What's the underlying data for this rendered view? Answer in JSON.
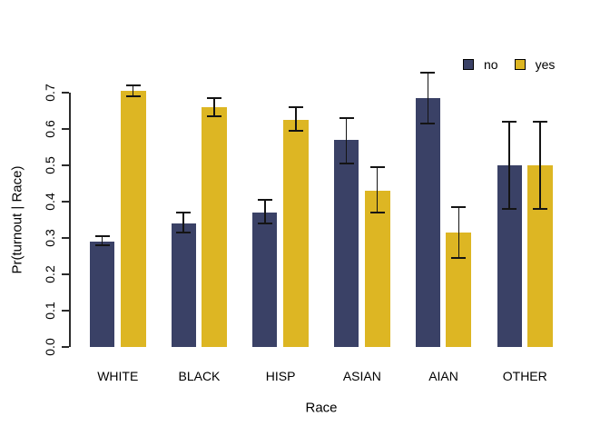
{
  "chart_data": {
    "type": "bar",
    "title": "",
    "xlabel": "Race",
    "ylabel": "Pr(turnout | Race)",
    "categories": [
      "WHITE",
      "BLACK",
      "HISP",
      "ASIAN",
      "AIAN",
      "OTHER"
    ],
    "series": [
      {
        "name": "no",
        "color": "#3A4166",
        "values": [
          0.29,
          0.34,
          0.37,
          0.57,
          0.685,
          0.5
        ],
        "ci_lower": [
          0.28,
          0.315,
          0.34,
          0.505,
          0.615,
          0.38
        ],
        "ci_upper": [
          0.305,
          0.37,
          0.405,
          0.63,
          0.755,
          0.62
        ]
      },
      {
        "name": "yes",
        "color": "#DDB623",
        "values": [
          0.705,
          0.66,
          0.625,
          0.43,
          0.315,
          0.5
        ],
        "ci_lower": [
          0.69,
          0.635,
          0.595,
          0.37,
          0.245,
          0.38
        ],
        "ci_upper": [
          0.72,
          0.685,
          0.66,
          0.495,
          0.385,
          0.62
        ]
      }
    ],
    "ylim": [
      0.0,
      0.7
    ],
    "yticks": [
      "0.0",
      "0.1",
      "0.2",
      "0.3",
      "0.4",
      "0.5",
      "0.6",
      "0.7"
    ],
    "grid": false,
    "error_bars": true,
    "error_bar_color": "#141414",
    "legend_position": "top-right",
    "background": "#FFFFFF"
  },
  "legend": {
    "items": [
      {
        "label": "no",
        "color": "#3A4166"
      },
      {
        "label": "yes",
        "color": "#DDB623"
      }
    ]
  }
}
